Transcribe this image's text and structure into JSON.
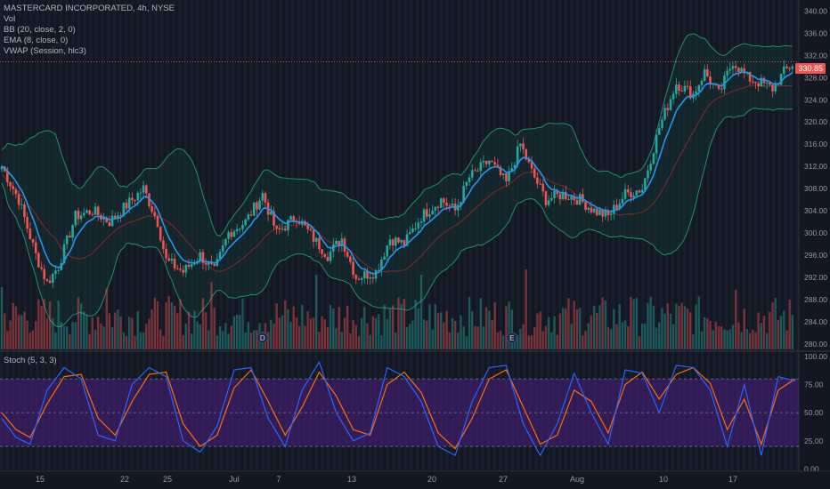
{
  "legend": {
    "title": "MASTERCARD INCORPORATED, 4h, NYSE",
    "vol": "Vol",
    "bb": "BB (20, close, 2, 0)",
    "ema": "EMA (8, close, 0)",
    "vwap": "VWAP (Session, hlc3)"
  },
  "stoch_label": "Stoch (5, 3, 3)",
  "last_price_label": "330.85",
  "colors": {
    "bg": "#131722",
    "up": "#26a69a",
    "down": "#ef5350",
    "ema": "#2196f3",
    "vwap": "#7e2a2a",
    "bb": "#1e8f6e",
    "stoch_k": "#2962ff",
    "stoch_d": "#ff6d00",
    "stoch_band": "#4a1f80"
  },
  "markers": [
    {
      "label": "D",
      "date": "Jul 2"
    },
    {
      "label": "E",
      "date": "Jul 29"
    }
  ],
  "chart_data": {
    "type": "candlestick",
    "x_tick_labels": [
      "15",
      "22",
      "25",
      "Jul",
      "7",
      "13",
      "20",
      "27",
      "Aug",
      "10",
      "17"
    ],
    "y_tick_labels": [
      "340.00",
      "336.00",
      "332.00",
      "328.00",
      "324.00",
      "320.00",
      "316.00",
      "312.00",
      "308.00",
      "304.00",
      "300.00",
      "296.00",
      "292.00",
      "288.00",
      "284.00",
      "280.00"
    ],
    "ylim": [
      279,
      342
    ],
    "last_price": 330.85,
    "close_path": [
      [
        0,
        312
      ],
      [
        6,
        306
      ],
      [
        12,
        296
      ],
      [
        16,
        291
      ],
      [
        20,
        294
      ],
      [
        26,
        303
      ],
      [
        32,
        304
      ],
      [
        38,
        302
      ],
      [
        44,
        305
      ],
      [
        50,
        308
      ],
      [
        55,
        302
      ],
      [
        58,
        295
      ],
      [
        64,
        293
      ],
      [
        70,
        296
      ],
      [
        75,
        293
      ],
      [
        80,
        300
      ],
      [
        86,
        302
      ],
      [
        92,
        307
      ],
      [
        97,
        300
      ],
      [
        104,
        303
      ],
      [
        110,
        299
      ],
      [
        115,
        296
      ],
      [
        120,
        299
      ],
      [
        125,
        292
      ],
      [
        132,
        293
      ],
      [
        137,
        299
      ],
      [
        142,
        298
      ],
      [
        148,
        303
      ],
      [
        155,
        306
      ],
      [
        160,
        304
      ],
      [
        165,
        310
      ],
      [
        172,
        313
      ],
      [
        178,
        309
      ],
      [
        183,
        316
      ],
      [
        187,
        311
      ],
      [
        192,
        306
      ],
      [
        198,
        307
      ],
      [
        204,
        306
      ],
      [
        209,
        304
      ],
      [
        214,
        303
      ],
      [
        220,
        307
      ],
      [
        226,
        308
      ],
      [
        232,
        319
      ],
      [
        238,
        327
      ],
      [
        244,
        325
      ],
      [
        248,
        329
      ],
      [
        253,
        325
      ],
      [
        258,
        331
      ],
      [
        263,
        328
      ],
      [
        268,
        327
      ],
      [
        272,
        326
      ],
      [
        276,
        329
      ],
      [
        280,
        330.85
      ]
    ],
    "stoch": {
      "ylim": [
        -2,
        103
      ],
      "y_tick_labels": [
        "100.00",
        "75.00",
        "50.00",
        "25.00",
        "0.00"
      ],
      "bands": [
        20,
        80
      ],
      "k": [
        [
          0,
          45
        ],
        [
          5,
          28
        ],
        [
          10,
          22
        ],
        [
          16,
          70
        ],
        [
          22,
          90
        ],
        [
          28,
          80
        ],
        [
          34,
          30
        ],
        [
          40,
          25
        ],
        [
          46,
          75
        ],
        [
          52,
          90
        ],
        [
          58,
          82
        ],
        [
          64,
          25
        ],
        [
          70,
          15
        ],
        [
          76,
          38
        ],
        [
          82,
          88
        ],
        [
          88,
          90
        ],
        [
          94,
          45
        ],
        [
          100,
          20
        ],
        [
          106,
          70
        ],
        [
          112,
          95
        ],
        [
          118,
          50
        ],
        [
          124,
          25
        ],
        [
          130,
          32
        ],
        [
          136,
          90
        ],
        [
          142,
          82
        ],
        [
          148,
          60
        ],
        [
          154,
          20
        ],
        [
          160,
          12
        ],
        [
          166,
          60
        ],
        [
          172,
          90
        ],
        [
          178,
          92
        ],
        [
          184,
          40
        ],
        [
          190,
          12
        ],
        [
          196,
          40
        ],
        [
          202,
          85
        ],
        [
          208,
          50
        ],
        [
          214,
          22
        ],
        [
          220,
          88
        ],
        [
          226,
          85
        ],
        [
          232,
          50
        ],
        [
          238,
          92
        ],
        [
          244,
          90
        ],
        [
          250,
          70
        ],
        [
          256,
          20
        ],
        [
          262,
          75
        ],
        [
          268,
          12
        ],
        [
          274,
          82
        ],
        [
          280,
          78
        ]
      ],
      "d": [
        [
          0,
          50
        ],
        [
          5,
          35
        ],
        [
          10,
          28
        ],
        [
          16,
          58
        ],
        [
          22,
          82
        ],
        [
          28,
          84
        ],
        [
          34,
          45
        ],
        [
          40,
          30
        ],
        [
          46,
          60
        ],
        [
          52,
          84
        ],
        [
          58,
          86
        ],
        [
          64,
          40
        ],
        [
          70,
          20
        ],
        [
          76,
          30
        ],
        [
          82,
          72
        ],
        [
          88,
          88
        ],
        [
          94,
          60
        ],
        [
          100,
          30
        ],
        [
          106,
          55
        ],
        [
          112,
          86
        ],
        [
          118,
          65
        ],
        [
          124,
          35
        ],
        [
          130,
          30
        ],
        [
          136,
          75
        ],
        [
          142,
          86
        ],
        [
          148,
          68
        ],
        [
          154,
          32
        ],
        [
          160,
          18
        ],
        [
          166,
          45
        ],
        [
          172,
          80
        ],
        [
          178,
          88
        ],
        [
          184,
          55
        ],
        [
          190,
          22
        ],
        [
          196,
          30
        ],
        [
          202,
          70
        ],
        [
          208,
          60
        ],
        [
          214,
          32
        ],
        [
          220,
          75
        ],
        [
          226,
          86
        ],
        [
          232,
          62
        ],
        [
          238,
          84
        ],
        [
          244,
          90
        ],
        [
          250,
          76
        ],
        [
          256,
          35
        ],
        [
          262,
          62
        ],
        [
          268,
          22
        ],
        [
          274,
          70
        ],
        [
          280,
          80
        ]
      ]
    }
  }
}
